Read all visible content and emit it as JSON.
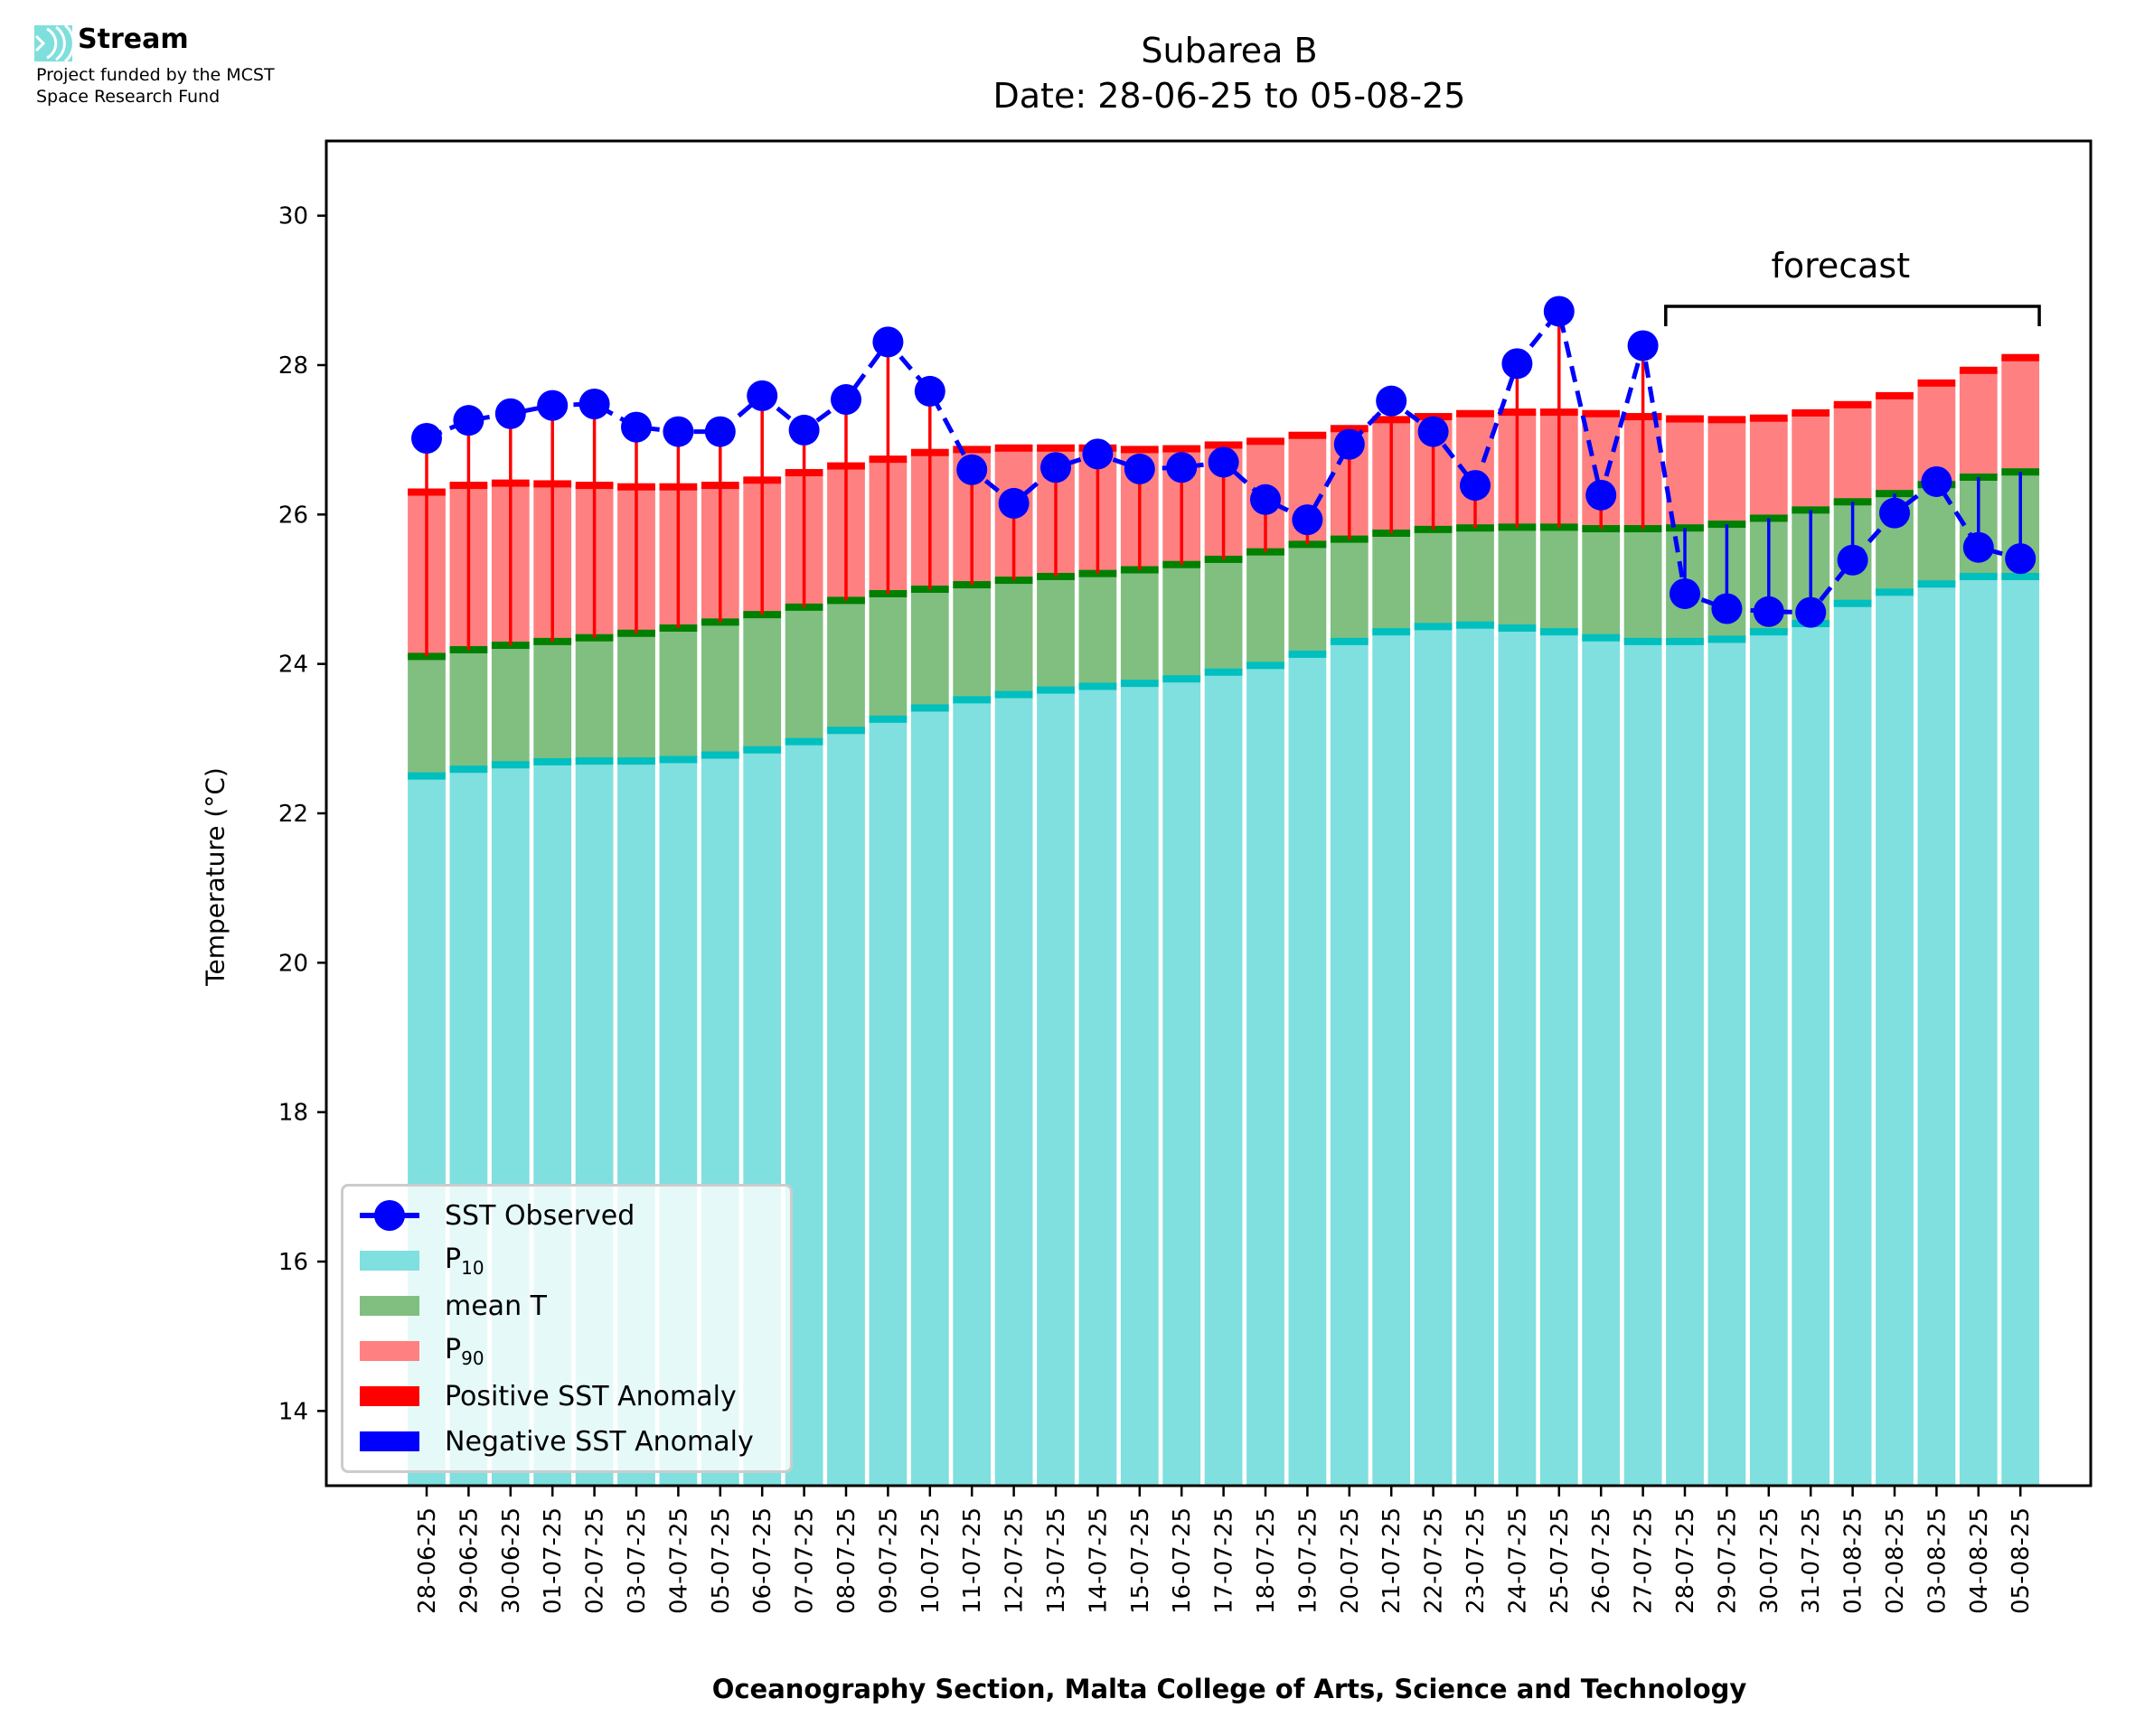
{
  "logo": {
    "name": "Stream",
    "lines": [
      "Project funded by the MCST",
      "Space Research Fund"
    ],
    "icon": "stream-waves-icon",
    "color": "#7fdfdc"
  },
  "chart_data": {
    "type": "bar",
    "title": "Subarea B",
    "subtitle": "Date: 28-06-25 to 05-08-25",
    "xlabel": "Oceanography Section, Malta College of Arts, Science and Technology",
    "ylabel": "Temperature (°C)",
    "ylim": [
      13,
      31
    ],
    "yticks": [
      14,
      16,
      18,
      20,
      22,
      24,
      26,
      28,
      30
    ],
    "grid": false,
    "legend_position": "bottom-left",
    "annotation": {
      "text": "forecast",
      "from": "28-07-25",
      "to": "05-08-25"
    },
    "categories": [
      "28-06-25",
      "29-06-25",
      "30-06-25",
      "01-07-25",
      "02-07-25",
      "03-07-25",
      "04-07-25",
      "05-07-25",
      "06-07-25",
      "07-07-25",
      "08-07-25",
      "09-07-25",
      "10-07-25",
      "11-07-25",
      "12-07-25",
      "13-07-25",
      "14-07-25",
      "15-07-25",
      "16-07-25",
      "17-07-25",
      "18-07-25",
      "19-07-25",
      "20-07-25",
      "21-07-25",
      "22-07-25",
      "23-07-25",
      "24-07-25",
      "25-07-25",
      "26-07-25",
      "27-07-25",
      "28-07-25",
      "29-07-25",
      "30-07-25",
      "31-07-25",
      "01-08-25",
      "02-08-25",
      "03-08-25",
      "04-08-25",
      "05-08-25"
    ],
    "series": [
      {
        "name": "P10",
        "color": "#80dfdf",
        "edge_color": "#00bfbf",
        "values": [
          22.5,
          22.59,
          22.65,
          22.69,
          22.7,
          22.7,
          22.72,
          22.78,
          22.85,
          22.96,
          23.11,
          23.26,
          23.41,
          23.52,
          23.59,
          23.65,
          23.7,
          23.74,
          23.8,
          23.89,
          23.98,
          24.13,
          24.3,
          24.43,
          24.5,
          24.52,
          24.48,
          24.43,
          24.35,
          24.3,
          24.3,
          24.33,
          24.43,
          24.54,
          24.81,
          24.96,
          25.07,
          25.17,
          25.17
        ]
      },
      {
        "name": "mean T",
        "color": "#80bf80",
        "edge_color": "#008000",
        "values": [
          24.1,
          24.19,
          24.25,
          24.3,
          24.35,
          24.41,
          24.48,
          24.56,
          24.66,
          24.76,
          24.85,
          24.94,
          25.0,
          25.06,
          25.12,
          25.17,
          25.21,
          25.26,
          25.33,
          25.4,
          25.5,
          25.6,
          25.67,
          25.75,
          25.8,
          25.82,
          25.83,
          25.83,
          25.81,
          25.81,
          25.82,
          25.87,
          25.95,
          26.06,
          26.17,
          26.28,
          26.4,
          26.5,
          26.57
        ]
      },
      {
        "name": "P90",
        "color": "#ff8080",
        "edge_color": "#ff0000",
        "values": [
          26.3,
          26.39,
          26.42,
          26.41,
          26.39,
          26.37,
          26.37,
          26.39,
          26.46,
          26.56,
          26.65,
          26.74,
          26.83,
          26.87,
          26.89,
          26.89,
          26.89,
          26.87,
          26.88,
          26.93,
          26.98,
          27.06,
          27.15,
          27.27,
          27.31,
          27.35,
          27.37,
          27.37,
          27.35,
          27.31,
          27.28,
          27.27,
          27.29,
          27.36,
          27.47,
          27.59,
          27.76,
          27.93,
          28.1
        ]
      },
      {
        "name": "SST Observed",
        "color": "#0000ff",
        "style": "dashed-line-with-markers",
        "values": [
          27.02,
          27.26,
          27.35,
          27.46,
          27.48,
          27.17,
          27.11,
          27.11,
          27.59,
          27.13,
          27.54,
          28.31,
          27.65,
          26.6,
          26.15,
          26.63,
          26.81,
          26.61,
          26.63,
          26.7,
          26.2,
          25.93,
          26.94,
          27.52,
          27.11,
          26.39,
          28.02,
          28.72,
          26.26,
          28.26,
          24.94,
          24.74,
          24.7,
          24.69,
          25.39,
          26.02,
          26.44,
          25.56,
          25.41
        ]
      }
    ],
    "legend": [
      {
        "label": "SST Observed",
        "kind": "line-marker",
        "color": "#0000ff"
      },
      {
        "label": "P",
        "sub": "10",
        "kind": "patch",
        "color": "#80dfdf"
      },
      {
        "label": "mean T",
        "kind": "patch",
        "color": "#80bf80"
      },
      {
        "label": "P",
        "sub": "90",
        "kind": "patch",
        "color": "#ff8080"
      },
      {
        "label": "Positive SST Anomaly",
        "kind": "patch",
        "color": "#ff0000"
      },
      {
        "label": "Negative SST Anomaly",
        "kind": "patch",
        "color": "#0000ff"
      }
    ]
  }
}
